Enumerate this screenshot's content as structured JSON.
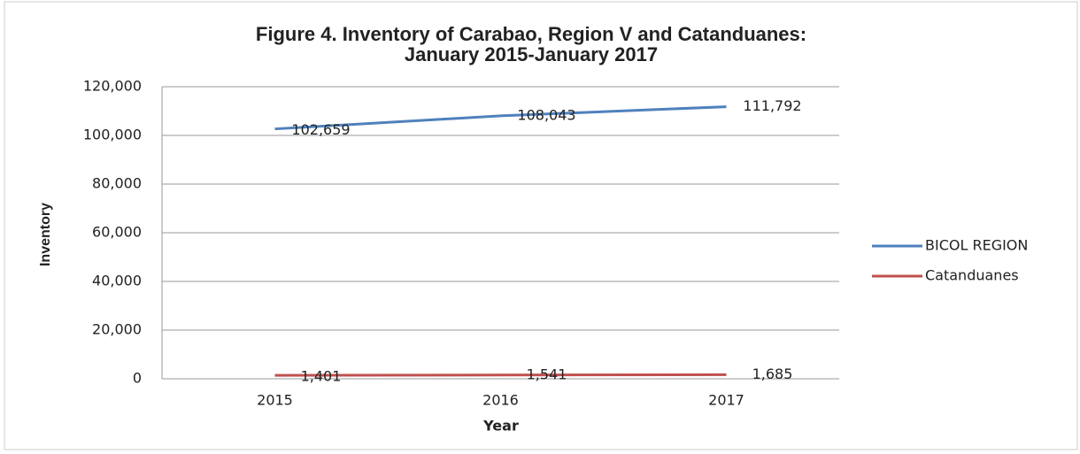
{
  "chart_data": {
    "type": "line",
    "title": [
      "Figure 4. Inventory of Carabao, Region V and Catanduanes:",
      "January 2015-January 2017"
    ],
    "x_label": "Year",
    "y_label": "Inventory",
    "categories": [
      "2015",
      "2016",
      "2017"
    ],
    "series": [
      {
        "name": "BICOL REGION",
        "color": "#4f81bd",
        "values": [
          102659,
          108043,
          111792
        ],
        "value_labels": [
          "102,659",
          "108,043",
          "111,792"
        ]
      },
      {
        "name": "Catanduanes",
        "color": "#c0504d",
        "values": [
          1401,
          1541,
          1685
        ],
        "value_labels": [
          "1,401",
          "1,541",
          "1,685"
        ]
      }
    ],
    "ylim": [
      0,
      120000
    ],
    "yticks": [
      0,
      {
        "value": 20000,
        "label": "20,000"
      },
      {
        "value": 40000,
        "label": "40,000"
      },
      {
        "value": 60000,
        "label": "60,000"
      },
      {
        "value": 80000,
        "label": "80,000"
      },
      {
        "value": 100000,
        "label": "100,000"
      },
      {
        "value": 120000,
        "label": "120,000"
      }
    ],
    "grid": true,
    "legend": "right"
  }
}
